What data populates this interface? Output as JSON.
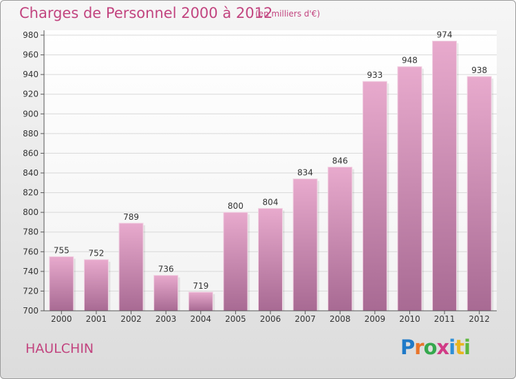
{
  "header": {
    "title": "Charges de Personnel 2000 à 2012",
    "subtitle": "(en milliers d'€)"
  },
  "footer": {
    "commune": "HAULCHIN",
    "logo_letters": [
      "P",
      "r",
      "o",
      "x",
      "i",
      "t",
      "i"
    ],
    "logo_colors": [
      "#1f7ac8",
      "#e8752b",
      "#35a84d",
      "#d13b86",
      "#2f8fd6",
      "#e8b51d",
      "#5db83f"
    ]
  },
  "colors": {
    "bar_top": "#e8aacd",
    "bar_bottom": "#a86a93",
    "title": "#c2447f",
    "grid": "#d8d8d8",
    "axis": "#555555"
  },
  "chart_data": {
    "type": "bar",
    "title": "Charges de Personnel 2000 à 2012",
    "xlabel": "",
    "ylabel": "",
    "categories": [
      "2000",
      "2001",
      "2002",
      "2003",
      "2004",
      "2005",
      "2006",
      "2007",
      "2008",
      "2009",
      "2010",
      "2011",
      "2012"
    ],
    "values": [
      755,
      752,
      789,
      736,
      719,
      800,
      804,
      834,
      846,
      933,
      948,
      974,
      938
    ],
    "ylim": [
      700,
      980
    ],
    "yticks": [
      700,
      720,
      740,
      760,
      780,
      800,
      820,
      840,
      860,
      880,
      900,
      920,
      940,
      960,
      980
    ],
    "grid": true,
    "data_labels": true
  }
}
